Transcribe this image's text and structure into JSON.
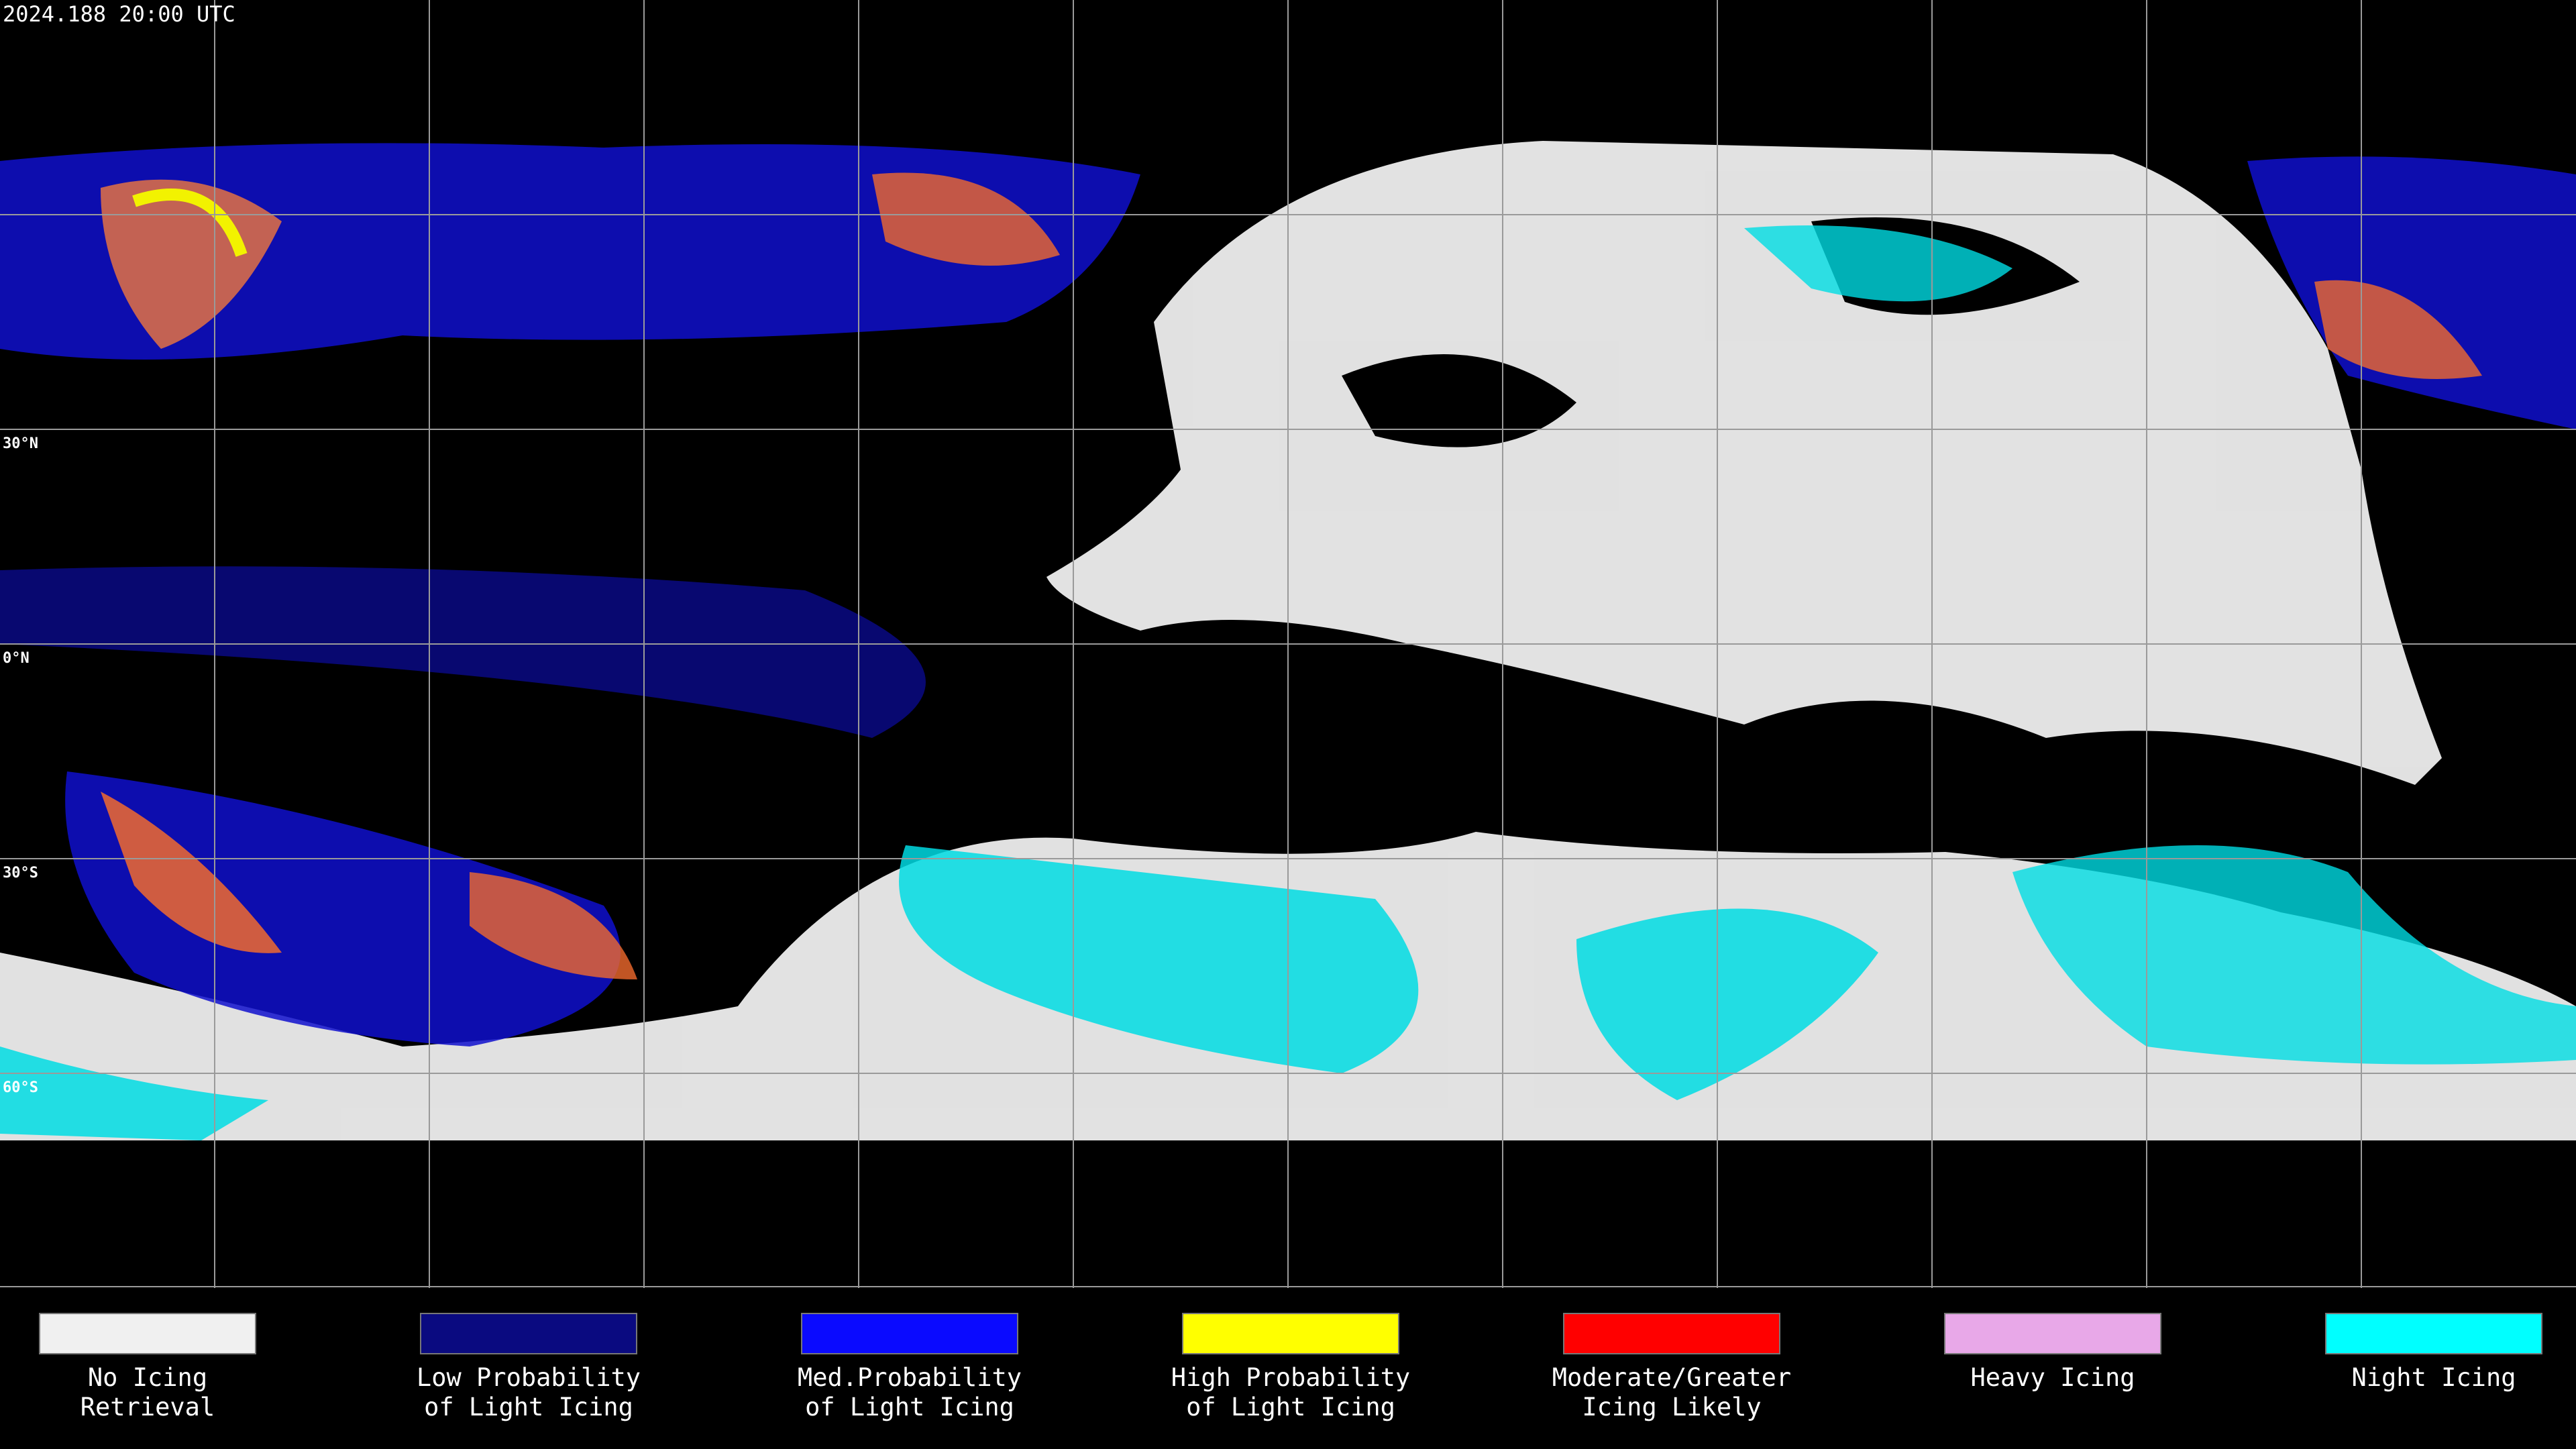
{
  "title": "2024.188 20:00 UTC",
  "latitude_labels": [
    "30°N",
    "0°N",
    "30°S",
    "60°S"
  ],
  "legend": [
    {
      "label": [
        "No Icing",
        "Retrieval"
      ],
      "color": "#f0f0f0"
    },
    {
      "label": [
        "Low Probability",
        "of Light Icing"
      ],
      "color": "#0a0a80"
    },
    {
      "label": [
        "Med.Probability",
        "of Light Icing"
      ],
      "color": "#0a0aff"
    },
    {
      "label": [
        "High Probability",
        "of Light Icing"
      ],
      "color": "#ffff00"
    },
    {
      "label": [
        "Moderate/Greater",
        "Icing Likely"
      ],
      "color": "#ff0000"
    },
    {
      "label": [
        "Heavy Icing"
      ],
      "color": "#e8a8e8"
    },
    {
      "label": [
        "Night Icing"
      ],
      "color": "#00ffff"
    }
  ]
}
